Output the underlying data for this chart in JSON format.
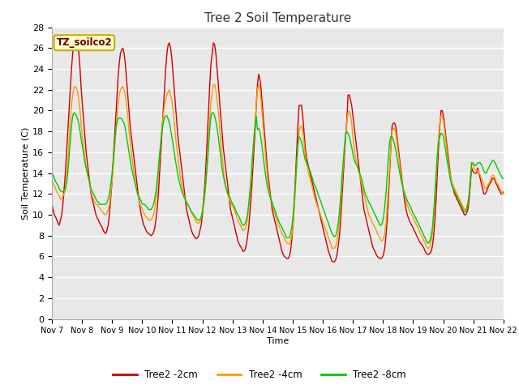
{
  "title": "Tree 2 Soil Temperature",
  "xlabel": "Time",
  "ylabel": "Soil Temperature (C)",
  "annotation": "TZ_soilco2",
  "ylim": [
    0,
    28
  ],
  "yticks": [
    0,
    2,
    4,
    6,
    8,
    10,
    12,
    14,
    16,
    18,
    20,
    22,
    24,
    26,
    28
  ],
  "xtick_labels": [
    "Nov 7",
    "Nov 8",
    "Nov 9",
    "Nov 10",
    "Nov 11",
    "Nov 12",
    "Nov 13",
    "Nov 14",
    "Nov 15",
    "Nov 16",
    "Nov 17",
    "Nov 18",
    "Nov 19",
    "Nov 20",
    "Nov 21",
    "Nov 22"
  ],
  "line_colors": {
    "2cm": "#cc0000",
    "4cm": "#ff9900",
    "8cm": "#00cc00"
  },
  "line_widths": {
    "2cm": 1.0,
    "4cm": 1.0,
    "8cm": 1.0
  },
  "legend_labels": [
    "Tree2 -2cm",
    "Tree2 -4cm",
    "Tree2 -8cm"
  ],
  "bg_color": "#ffffff",
  "plot_bg_color": "#e8e8e8",
  "grid_color": "#ffffff",
  "t2cm": [
    11.0,
    10.5,
    10.0,
    9.8,
    9.5,
    9.2,
    9.0,
    9.5,
    10.0,
    11.0,
    12.5,
    14.0,
    16.0,
    18.0,
    20.0,
    22.0,
    24.0,
    25.5,
    27.0,
    27.2,
    27.0,
    26.5,
    25.5,
    24.0,
    22.0,
    20.5,
    19.0,
    17.5,
    16.0,
    15.0,
    14.0,
    13.0,
    12.0,
    11.5,
    11.0,
    10.5,
    10.0,
    9.7,
    9.5,
    9.2,
    9.0,
    8.8,
    8.5,
    8.3,
    8.2,
    8.5,
    9.0,
    10.0,
    11.5,
    13.0,
    15.0,
    17.0,
    19.0,
    21.0,
    23.0,
    24.5,
    25.5,
    25.8,
    26.0,
    25.5,
    24.5,
    23.0,
    21.5,
    20.0,
    18.5,
    17.5,
    16.5,
    15.5,
    14.5,
    13.5,
    12.5,
    11.5,
    10.8,
    10.0,
    9.5,
    9.0,
    8.8,
    8.5,
    8.3,
    8.2,
    8.1,
    8.0,
    8.1,
    8.3,
    8.7,
    9.5,
    10.5,
    12.0,
    14.0,
    16.0,
    18.0,
    20.0,
    22.0,
    24.0,
    25.5,
    26.3,
    26.5,
    26.0,
    25.0,
    23.5,
    22.0,
    20.5,
    19.0,
    17.5,
    16.5,
    15.5,
    14.5,
    13.5,
    12.5,
    11.5,
    10.5,
    10.0,
    9.5,
    9.0,
    8.5,
    8.2,
    8.0,
    7.8,
    7.7,
    7.8,
    8.0,
    8.5,
    9.0,
    10.0,
    11.5,
    13.0,
    15.0,
    17.5,
    20.0,
    22.5,
    24.5,
    25.5,
    26.5,
    26.3,
    25.5,
    24.0,
    22.5,
    21.0,
    19.5,
    18.0,
    16.5,
    15.5,
    14.5,
    13.5,
    12.5,
    11.5,
    10.5,
    10.0,
    9.5,
    9.0,
    8.5,
    8.0,
    7.5,
    7.2,
    7.0,
    6.8,
    6.5,
    6.5,
    6.7,
    7.2,
    8.0,
    9.0,
    10.5,
    12.0,
    14.0,
    16.0,
    18.0,
    20.5,
    22.5,
    23.5,
    23.0,
    22.0,
    20.5,
    19.0,
    17.5,
    16.0,
    14.5,
    13.5,
    12.5,
    11.5,
    10.5,
    10.0,
    9.5,
    9.0,
    8.5,
    8.0,
    7.5,
    7.0,
    6.5,
    6.2,
    6.0,
    5.9,
    5.8,
    5.8,
    6.0,
    6.5,
    7.5,
    9.0,
    11.0,
    13.5,
    16.0,
    18.5,
    20.5,
    20.5,
    20.5,
    19.5,
    18.0,
    16.5,
    15.5,
    15.0,
    14.5,
    14.0,
    13.5,
    13.0,
    12.5,
    12.0,
    11.5,
    11.0,
    10.5,
    10.0,
    9.5,
    9.0,
    8.5,
    8.0,
    7.5,
    7.0,
    6.5,
    6.2,
    5.8,
    5.5,
    5.5,
    5.5,
    5.7,
    6.2,
    7.0,
    8.0,
    9.5,
    11.5,
    13.5,
    15.5,
    17.5,
    19.0,
    21.5,
    21.5,
    21.0,
    20.5,
    19.5,
    18.5,
    17.5,
    16.5,
    15.5,
    14.5,
    13.5,
    12.5,
    11.5,
    10.5,
    10.0,
    9.5,
    9.0,
    8.5,
    8.0,
    7.5,
    7.0,
    6.7,
    6.5,
    6.2,
    6.0,
    5.9,
    5.8,
    5.8,
    5.9,
    6.2,
    6.8,
    8.0,
    9.5,
    11.5,
    14.0,
    16.5,
    18.5,
    18.8,
    18.8,
    18.5,
    17.5,
    16.5,
    15.5,
    14.5,
    13.5,
    12.5,
    11.5,
    10.8,
    10.2,
    9.8,
    9.5,
    9.2,
    9.0,
    8.8,
    8.5,
    8.3,
    8.0,
    7.8,
    7.5,
    7.3,
    7.2,
    7.0,
    6.8,
    6.5,
    6.3,
    6.2,
    6.2,
    6.3,
    6.5,
    7.0,
    8.0,
    9.5,
    11.5,
    14.0,
    16.5,
    18.5,
    20.0,
    20.0,
    19.5,
    18.5,
    17.5,
    16.5,
    15.5,
    14.5,
    13.5,
    12.8,
    12.5,
    12.0,
    11.8,
    11.5,
    11.3,
    11.0,
    10.8,
    10.5,
    10.3,
    10.0,
    10.0,
    10.2,
    10.5,
    11.5,
    13.0,
    14.5,
    14.2,
    14.0,
    14.0,
    14.0,
    14.5,
    14.0,
    13.5,
    13.0,
    12.5,
    12.0,
    12.0,
    12.2,
    12.5,
    12.8,
    13.0,
    13.2,
    13.5,
    13.5,
    13.3,
    13.0,
    12.8,
    12.5,
    12.3,
    12.0,
    12.0,
    12.2
  ],
  "t4cm": [
    13.3,
    13.0,
    12.8,
    12.5,
    12.2,
    12.0,
    11.8,
    11.5,
    11.5,
    11.8,
    12.0,
    12.5,
    13.5,
    15.0,
    17.0,
    19.0,
    20.5,
    21.5,
    22.2,
    22.3,
    22.2,
    21.8,
    21.0,
    20.0,
    18.5,
    17.5,
    16.5,
    15.5,
    14.5,
    14.0,
    13.5,
    12.8,
    12.2,
    11.8,
    11.5,
    11.2,
    11.0,
    11.0,
    10.8,
    10.7,
    10.5,
    10.3,
    10.2,
    10.0,
    10.0,
    10.2,
    10.5,
    11.0,
    12.0,
    13.0,
    14.5,
    16.0,
    17.5,
    19.0,
    20.5,
    21.5,
    22.0,
    22.2,
    22.3,
    22.0,
    21.5,
    20.5,
    19.5,
    18.0,
    17.0,
    16.0,
    15.0,
    14.0,
    13.0,
    12.5,
    12.0,
    11.5,
    11.0,
    10.8,
    10.5,
    10.2,
    10.0,
    9.8,
    9.7,
    9.5,
    9.5,
    9.5,
    9.7,
    10.0,
    10.5,
    11.5,
    12.5,
    14.0,
    15.5,
    17.0,
    18.5,
    19.5,
    20.5,
    21.0,
    21.5,
    21.8,
    22.0,
    21.5,
    21.0,
    20.0,
    19.0,
    17.5,
    16.5,
    15.5,
    14.5,
    13.5,
    12.8,
    12.2,
    11.8,
    11.5,
    11.2,
    11.0,
    10.8,
    10.5,
    10.2,
    10.0,
    9.8,
    9.5,
    9.3,
    9.2,
    9.2,
    9.3,
    9.7,
    10.3,
    11.2,
    12.3,
    13.5,
    15.2,
    17.0,
    19.0,
    20.8,
    21.8,
    22.5,
    22.5,
    22.0,
    21.0,
    20.0,
    18.5,
    17.0,
    15.8,
    14.5,
    13.5,
    12.8,
    12.2,
    11.8,
    11.5,
    11.2,
    11.0,
    10.8,
    10.5,
    10.2,
    9.8,
    9.5,
    9.2,
    9.0,
    8.8,
    8.5,
    8.5,
    8.7,
    9.0,
    9.8,
    10.8,
    12.0,
    13.5,
    15.5,
    17.0,
    18.8,
    20.5,
    22.0,
    22.5,
    22.0,
    20.8,
    19.5,
    18.0,
    16.5,
    15.0,
    13.8,
    12.8,
    12.0,
    11.5,
    11.0,
    10.5,
    10.2,
    9.8,
    9.5,
    9.0,
    8.8,
    8.5,
    8.2,
    8.0,
    7.8,
    7.5,
    7.3,
    7.2,
    7.2,
    7.5,
    8.0,
    9.0,
    10.5,
    12.5,
    14.5,
    16.5,
    18.0,
    18.5,
    18.5,
    18.0,
    17.0,
    15.8,
    15.0,
    14.5,
    13.8,
    13.5,
    13.0,
    12.5,
    12.0,
    11.5,
    11.2,
    10.8,
    10.5,
    10.2,
    9.8,
    9.5,
    9.2,
    8.8,
    8.5,
    8.2,
    7.8,
    7.5,
    7.2,
    6.8,
    6.8,
    6.8,
    7.0,
    7.5,
    8.3,
    9.5,
    11.0,
    12.8,
    14.5,
    16.0,
    17.5,
    18.8,
    19.8,
    20.0,
    19.5,
    18.8,
    17.5,
    16.5,
    15.5,
    15.0,
    14.5,
    14.0,
    13.5,
    13.0,
    12.5,
    12.0,
    11.5,
    11.0,
    10.5,
    10.0,
    9.8,
    9.5,
    9.2,
    9.0,
    8.8,
    8.5,
    8.2,
    8.0,
    7.8,
    7.5,
    7.5,
    7.7,
    8.2,
    9.2,
    10.8,
    12.5,
    14.5,
    16.5,
    18.0,
    18.3,
    18.3,
    17.8,
    17.0,
    16.0,
    15.0,
    14.0,
    13.2,
    12.5,
    12.0,
    11.5,
    11.0,
    10.8,
    10.5,
    10.2,
    10.0,
    9.8,
    9.5,
    9.3,
    9.0,
    8.8,
    8.5,
    8.2,
    8.0,
    7.8,
    7.5,
    7.3,
    7.0,
    6.8,
    6.8,
    7.0,
    7.5,
    8.2,
    9.5,
    11.5,
    13.5,
    15.5,
    17.5,
    18.8,
    19.5,
    19.5,
    19.0,
    18.0,
    17.0,
    16.0,
    15.0,
    14.2,
    13.5,
    13.0,
    12.8,
    12.5,
    12.3,
    12.0,
    11.8,
    11.5,
    11.3,
    11.0,
    10.8,
    10.5,
    10.5,
    10.8,
    11.2,
    12.0,
    13.5,
    15.0,
    14.8,
    14.5,
    14.3,
    14.2,
    14.3,
    14.0,
    13.8,
    13.5,
    13.2,
    12.8,
    12.5,
    12.5,
    12.8,
    13.0,
    13.2,
    13.5,
    13.8,
    13.8,
    13.5,
    13.2,
    13.0,
    12.8,
    12.5,
    12.3,
    12.0,
    12.0
  ],
  "t8cm": [
    14.0,
    13.8,
    13.5,
    13.2,
    13.0,
    12.8,
    12.5,
    12.3,
    12.2,
    12.2,
    12.3,
    12.5,
    13.0,
    14.0,
    15.5,
    17.0,
    18.5,
    19.5,
    19.8,
    19.7,
    19.5,
    19.2,
    18.8,
    18.0,
    17.2,
    16.5,
    15.8,
    15.0,
    14.5,
    14.0,
    13.5,
    13.0,
    12.5,
    12.2,
    12.0,
    11.8,
    11.5,
    11.3,
    11.2,
    11.0,
    11.0,
    11.0,
    11.0,
    11.0,
    11.0,
    11.2,
    11.5,
    12.0,
    12.8,
    13.8,
    15.0,
    16.5,
    18.0,
    18.8,
    19.2,
    19.3,
    19.3,
    19.2,
    19.0,
    18.8,
    18.3,
    17.5,
    16.8,
    16.0,
    15.3,
    14.5,
    14.0,
    13.5,
    13.0,
    12.5,
    12.0,
    11.8,
    11.5,
    11.3,
    11.0,
    11.0,
    11.0,
    10.8,
    10.7,
    10.5,
    10.5,
    10.5,
    10.7,
    11.0,
    11.5,
    12.2,
    13.2,
    14.5,
    15.8,
    17.0,
    18.2,
    18.8,
    19.3,
    19.5,
    19.5,
    19.2,
    18.8,
    18.2,
    17.5,
    16.8,
    16.0,
    15.2,
    14.5,
    13.8,
    13.2,
    12.8,
    12.3,
    12.0,
    11.7,
    11.5,
    11.2,
    11.0,
    10.8,
    10.5,
    10.3,
    10.2,
    10.0,
    9.8,
    9.7,
    9.5,
    9.5,
    9.5,
    9.8,
    10.3,
    11.0,
    12.0,
    13.3,
    14.8,
    16.5,
    18.2,
    19.5,
    19.8,
    19.8,
    19.5,
    19.0,
    18.3,
    17.5,
    16.5,
    15.5,
    14.5,
    13.8,
    13.2,
    12.7,
    12.3,
    12.0,
    11.8,
    11.5,
    11.2,
    11.0,
    10.8,
    10.5,
    10.2,
    10.0,
    9.8,
    9.5,
    9.2,
    9.0,
    9.0,
    9.2,
    9.5,
    10.2,
    11.2,
    12.5,
    14.0,
    15.8,
    17.3,
    18.5,
    19.5,
    18.2,
    18.3,
    18.0,
    17.2,
    16.3,
    15.3,
    14.3,
    13.5,
    12.8,
    12.2,
    11.8,
    11.5,
    11.2,
    10.8,
    10.5,
    10.2,
    9.8,
    9.5,
    9.2,
    9.0,
    8.8,
    8.5,
    8.3,
    8.0,
    7.8,
    7.8,
    7.8,
    8.2,
    8.8,
    9.8,
    11.2,
    13.0,
    15.0,
    16.8,
    17.5,
    17.3,
    17.0,
    16.5,
    15.8,
    15.3,
    15.0,
    14.8,
    14.5,
    14.2,
    13.8,
    13.5,
    13.0,
    12.8,
    12.5,
    12.2,
    11.8,
    11.5,
    11.2,
    10.8,
    10.5,
    10.2,
    9.8,
    9.5,
    9.2,
    8.8,
    8.5,
    8.2,
    8.0,
    7.9,
    8.0,
    8.5,
    9.2,
    10.3,
    11.8,
    13.5,
    15.0,
    16.5,
    17.8,
    18.0,
    17.8,
    17.5,
    17.0,
    16.5,
    15.8,
    15.3,
    15.0,
    14.8,
    14.5,
    14.2,
    13.8,
    13.5,
    13.0,
    12.5,
    12.0,
    11.8,
    11.5,
    11.2,
    11.0,
    10.8,
    10.5,
    10.3,
    10.0,
    9.8,
    9.5,
    9.3,
    9.0,
    9.0,
    9.2,
    9.8,
    10.8,
    12.0,
    13.8,
    15.5,
    17.0,
    17.5,
    17.5,
    17.2,
    16.8,
    16.2,
    15.5,
    14.8,
    14.2,
    13.5,
    13.0,
    12.5,
    12.2,
    11.8,
    11.5,
    11.2,
    11.0,
    10.8,
    10.5,
    10.2,
    10.0,
    9.8,
    9.5,
    9.3,
    9.0,
    8.8,
    8.5,
    8.3,
    8.0,
    7.8,
    7.5,
    7.3,
    7.3,
    7.5,
    8.0,
    8.8,
    10.2,
    12.0,
    14.0,
    15.8,
    17.0,
    17.5,
    17.8,
    17.8,
    17.5,
    16.8,
    16.0,
    15.2,
    14.5,
    13.8,
    13.2,
    12.8,
    12.5,
    12.3,
    12.0,
    11.8,
    11.5,
    11.3,
    11.0,
    10.8,
    10.5,
    10.3,
    10.3,
    10.5,
    11.0,
    12.0,
    13.5,
    15.0,
    15.0,
    14.8,
    14.7,
    14.8,
    15.0,
    15.0,
    15.0,
    14.8,
    14.5,
    14.2,
    14.0,
    14.0,
    14.3,
    14.5,
    14.8,
    15.0,
    15.2,
    15.2,
    15.0,
    14.8,
    14.5,
    14.3,
    14.0,
    13.8,
    13.5,
    13.5
  ]
}
